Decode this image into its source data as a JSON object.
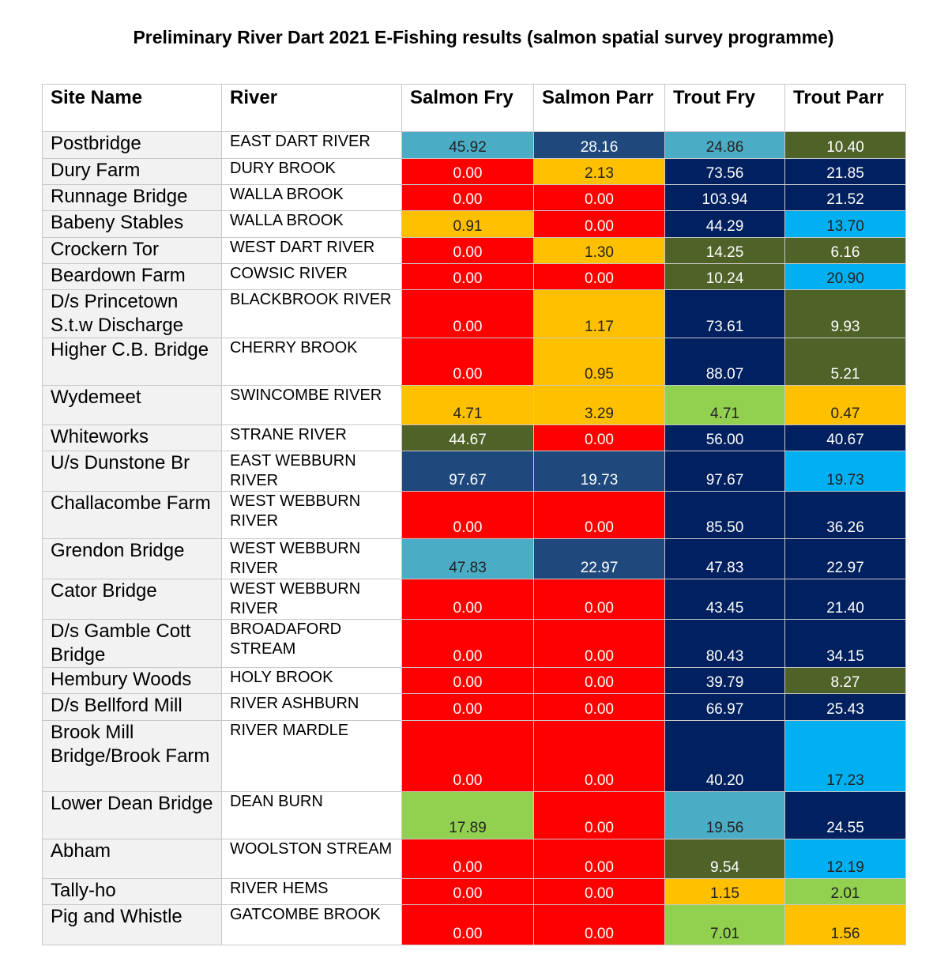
{
  "title": "Preliminary River Dart 2021 E-Fishing results (salmon spatial survey programme)",
  "table": {
    "header": [
      "Site Name",
      "River",
      "Salmon Fry",
      "Salmon Parr",
      "Trout Fry",
      "Trout Parr"
    ],
    "rows": [
      {
        "site": "Postbridge",
        "river": "EAST DART RIVER",
        "cells": [
          {
            "text": "45.92",
            "color": "#4bacc6"
          },
          {
            "text": "28.16",
            "color": "#1f497d"
          },
          {
            "text": "24.86",
            "color": "#4bacc6"
          },
          {
            "text": "10.40",
            "color": "#4f6228"
          }
        ]
      },
      {
        "site": "Dury Farm",
        "river": "DURY BROOK",
        "cells": [
          {
            "text": "0.00",
            "color": "#ff0000"
          },
          {
            "text": "2.13",
            "color": "#ffc000"
          },
          {
            "text": "73.56",
            "color": "#002060"
          },
          {
            "text": "21.85",
            "color": "#002060"
          }
        ]
      },
      {
        "site": "Runnage Bridge",
        "river": "WALLA BROOK",
        "cells": [
          {
            "text": "0.00",
            "color": "#ff0000"
          },
          {
            "text": "0.00",
            "color": "#ff0000"
          },
          {
            "text": "103.94",
            "color": "#002060"
          },
          {
            "text": "21.52",
            "color": "#002060"
          }
        ]
      },
      {
        "site": "Babeny Stables",
        "river": "WALLA BROOK",
        "cells": [
          {
            "text": "0.91",
            "color": "#ffc000"
          },
          {
            "text": "0.00",
            "color": "#ff0000"
          },
          {
            "text": "44.29",
            "color": "#002060"
          },
          {
            "text": "13.70",
            "color": "#00b0f0"
          }
        ]
      },
      {
        "site": "Crockern Tor",
        "river": "WEST DART RIVER",
        "cells": [
          {
            "text": "0.00",
            "color": "#ff0000"
          },
          {
            "text": "1.30",
            "color": "#ffc000"
          },
          {
            "text": "14.25",
            "color": "#4f6228"
          },
          {
            "text": "6.16",
            "color": "#4f6228"
          }
        ]
      },
      {
        "site": "Beardown Farm",
        "river": "COWSIC RIVER",
        "cells": [
          {
            "text": "0.00",
            "color": "#ff0000"
          },
          {
            "text": "0.00",
            "color": "#ff0000"
          },
          {
            "text": "10.24",
            "color": "#4f6228"
          },
          {
            "text": "20.90",
            "color": "#00b0f0"
          }
        ]
      },
      {
        "site": "D/s Princetown S.t.w Discharge",
        "river": "BLACKBROOK RIVER",
        "cells": [
          {
            "text": "0.00",
            "color": "#ff0000"
          },
          {
            "text": "1.17",
            "color": "#ffc000"
          },
          {
            "text": "73.61",
            "color": "#002060"
          },
          {
            "text": "9.93",
            "color": "#4f6228"
          }
        ]
      },
      {
        "site": "Higher C.B. Bridge",
        "river": "CHERRY BROOK",
        "cells": [
          {
            "text": "0.00",
            "color": "#ff0000"
          },
          {
            "text": "0.95",
            "color": "#ffc000"
          },
          {
            "text": "88.07",
            "color": "#002060"
          },
          {
            "text": "5.21",
            "color": "#4f6228"
          }
        ]
      },
      {
        "site": "Wydemeet",
        "river": "SWINCOMBE RIVER",
        "cells": [
          {
            "text": "4.71",
            "color": "#ffc000"
          },
          {
            "text": "3.29",
            "color": "#ffc000"
          },
          {
            "text": "4.71",
            "color": "#92d050"
          },
          {
            "text": "0.47",
            "color": "#ffc000"
          }
        ]
      },
      {
        "site": "Whiteworks",
        "river": "STRANE RIVER",
        "cells": [
          {
            "text": "44.67",
            "color": "#4f6228"
          },
          {
            "text": "0.00",
            "color": "#ff0000"
          },
          {
            "text": "56.00",
            "color": "#002060"
          },
          {
            "text": "40.67",
            "color": "#002060"
          }
        ]
      },
      {
        "site": "U/s Dunstone Br",
        "river": "EAST WEBBURN RIVER",
        "cells": [
          {
            "text": "97.67",
            "color": "#1f497d"
          },
          {
            "text": "19.73",
            "color": "#1f497d"
          },
          {
            "text": "97.67",
            "color": "#002060"
          },
          {
            "text": "19.73",
            "color": "#00b0f0"
          }
        ]
      },
      {
        "site": "Challacombe Farm",
        "river": "WEST WEBBURN RIVER",
        "cells": [
          {
            "text": "0.00",
            "color": "#ff0000"
          },
          {
            "text": "0.00",
            "color": "#ff0000"
          },
          {
            "text": "85.50",
            "color": "#002060"
          },
          {
            "text": "36.26",
            "color": "#002060"
          }
        ]
      },
      {
        "site": "Grendon Bridge",
        "river": "WEST WEBBURN RIVER",
        "cells": [
          {
            "text": "47.83",
            "color": "#4bacc6"
          },
          {
            "text": "22.97",
            "color": "#1f497d"
          },
          {
            "text": "47.83",
            "color": "#002060"
          },
          {
            "text": "22.97",
            "color": "#002060"
          }
        ]
      },
      {
        "site": "Cator Bridge",
        "river": "WEST WEBBURN RIVER",
        "cells": [
          {
            "text": "0.00",
            "color": "#ff0000"
          },
          {
            "text": "0.00",
            "color": "#ff0000"
          },
          {
            "text": "43.45",
            "color": "#002060"
          },
          {
            "text": "21.40",
            "color": "#002060"
          }
        ]
      },
      {
        "site": "D/s Gamble Cott Bridge",
        "river": "BROADAFORD STREAM",
        "cells": [
          {
            "text": "0.00",
            "color": "#ff0000"
          },
          {
            "text": "0.00",
            "color": "#ff0000"
          },
          {
            "text": "80.43",
            "color": "#002060"
          },
          {
            "text": "34.15",
            "color": "#002060"
          }
        ]
      },
      {
        "site": "Hembury Woods",
        "river": "HOLY BROOK",
        "cells": [
          {
            "text": "0.00",
            "color": "#ff0000"
          },
          {
            "text": "0.00",
            "color": "#ff0000"
          },
          {
            "text": "39.79",
            "color": "#002060"
          },
          {
            "text": "8.27",
            "color": "#4f6228"
          }
        ]
      },
      {
        "site": "D/s Bellford Mill",
        "river": "RIVER ASHBURN",
        "cells": [
          {
            "text": "0.00",
            "color": "#ff0000"
          },
          {
            "text": "0.00",
            "color": "#ff0000"
          },
          {
            "text": "66.97",
            "color": "#002060"
          },
          {
            "text": "25.43",
            "color": "#002060"
          }
        ]
      },
      {
        "site": "Brook Mill Bridge/Brook Farm",
        "river": "RIVER MARDLE",
        "cells": [
          {
            "text": "0.00",
            "color": "#ff0000"
          },
          {
            "text": "0.00",
            "color": "#ff0000"
          },
          {
            "text": "40.20",
            "color": "#002060"
          },
          {
            "text": "17.23",
            "color": "#00b0f0"
          }
        ]
      },
      {
        "site": "Lower Dean Bridge",
        "river": "DEAN BURN",
        "cells": [
          {
            "text": "17.89",
            "color": "#92d050"
          },
          {
            "text": "0.00",
            "color": "#ff0000"
          },
          {
            "text": "19.56",
            "color": "#4bacc6"
          },
          {
            "text": "24.55",
            "color": "#002060"
          }
        ]
      },
      {
        "site": "Abham",
        "river": "WOOLSTON STREAM",
        "cells": [
          {
            "text": "0.00",
            "color": "#ff0000"
          },
          {
            "text": "0.00",
            "color": "#ff0000"
          },
          {
            "text": "9.54",
            "color": "#4f6228"
          },
          {
            "text": "12.19",
            "color": "#00b0f0"
          }
        ]
      },
      {
        "site": "Tally-ho",
        "river": "RIVER HEMS",
        "cells": [
          {
            "text": "0.00",
            "color": "#ff0000"
          },
          {
            "text": "0.00",
            "color": "#ff0000"
          },
          {
            "text": "1.15",
            "color": "#ffc000"
          },
          {
            "text": "2.01",
            "color": "#92d050"
          }
        ]
      },
      {
        "site": "Pig and Whistle",
        "river": "GATCOMBE BROOK",
        "cells": [
          {
            "text": "0.00",
            "color": "#ff0000"
          },
          {
            "text": "0.00",
            "color": "#ff0000"
          },
          {
            "text": "7.01",
            "color": "#92d050"
          },
          {
            "text": "1.56",
            "color": "#ffc000"
          }
        ]
      }
    ]
  }
}
